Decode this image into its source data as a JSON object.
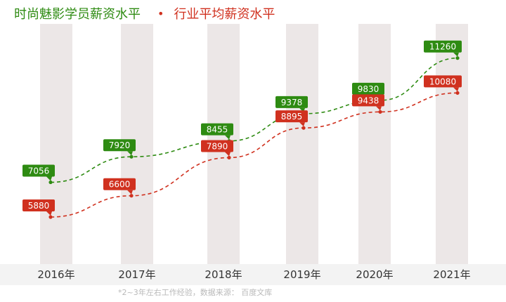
{
  "legend": {
    "series1": "时尚魅影学员薪资水平",
    "dot": "•",
    "series2": "行业平均薪资水平"
  },
  "footnote": "*2~3年左右工作经验，数据来源： 百度文库",
  "colors": {
    "green": "#2e8b12",
    "red": "#d0311f",
    "column": "#ece7e7",
    "axis_band": "#f3f3f3"
  },
  "chart_data": {
    "type": "line",
    "categories": [
      "2016年",
      "2017年",
      "2018年",
      "2019年",
      "2020年",
      "2021年"
    ],
    "series": [
      {
        "name": "时尚魅影学员薪资水平",
        "values": [
          7056,
          7920,
          8455,
          9378,
          9830,
          11260
        ]
      },
      {
        "name": "行业平均薪资水平",
        "values": [
          5880,
          6600,
          7890,
          8895,
          9438,
          10080
        ]
      }
    ],
    "ylim": [
      5000,
      11800
    ],
    "line_style": "dashed",
    "grid": false
  }
}
